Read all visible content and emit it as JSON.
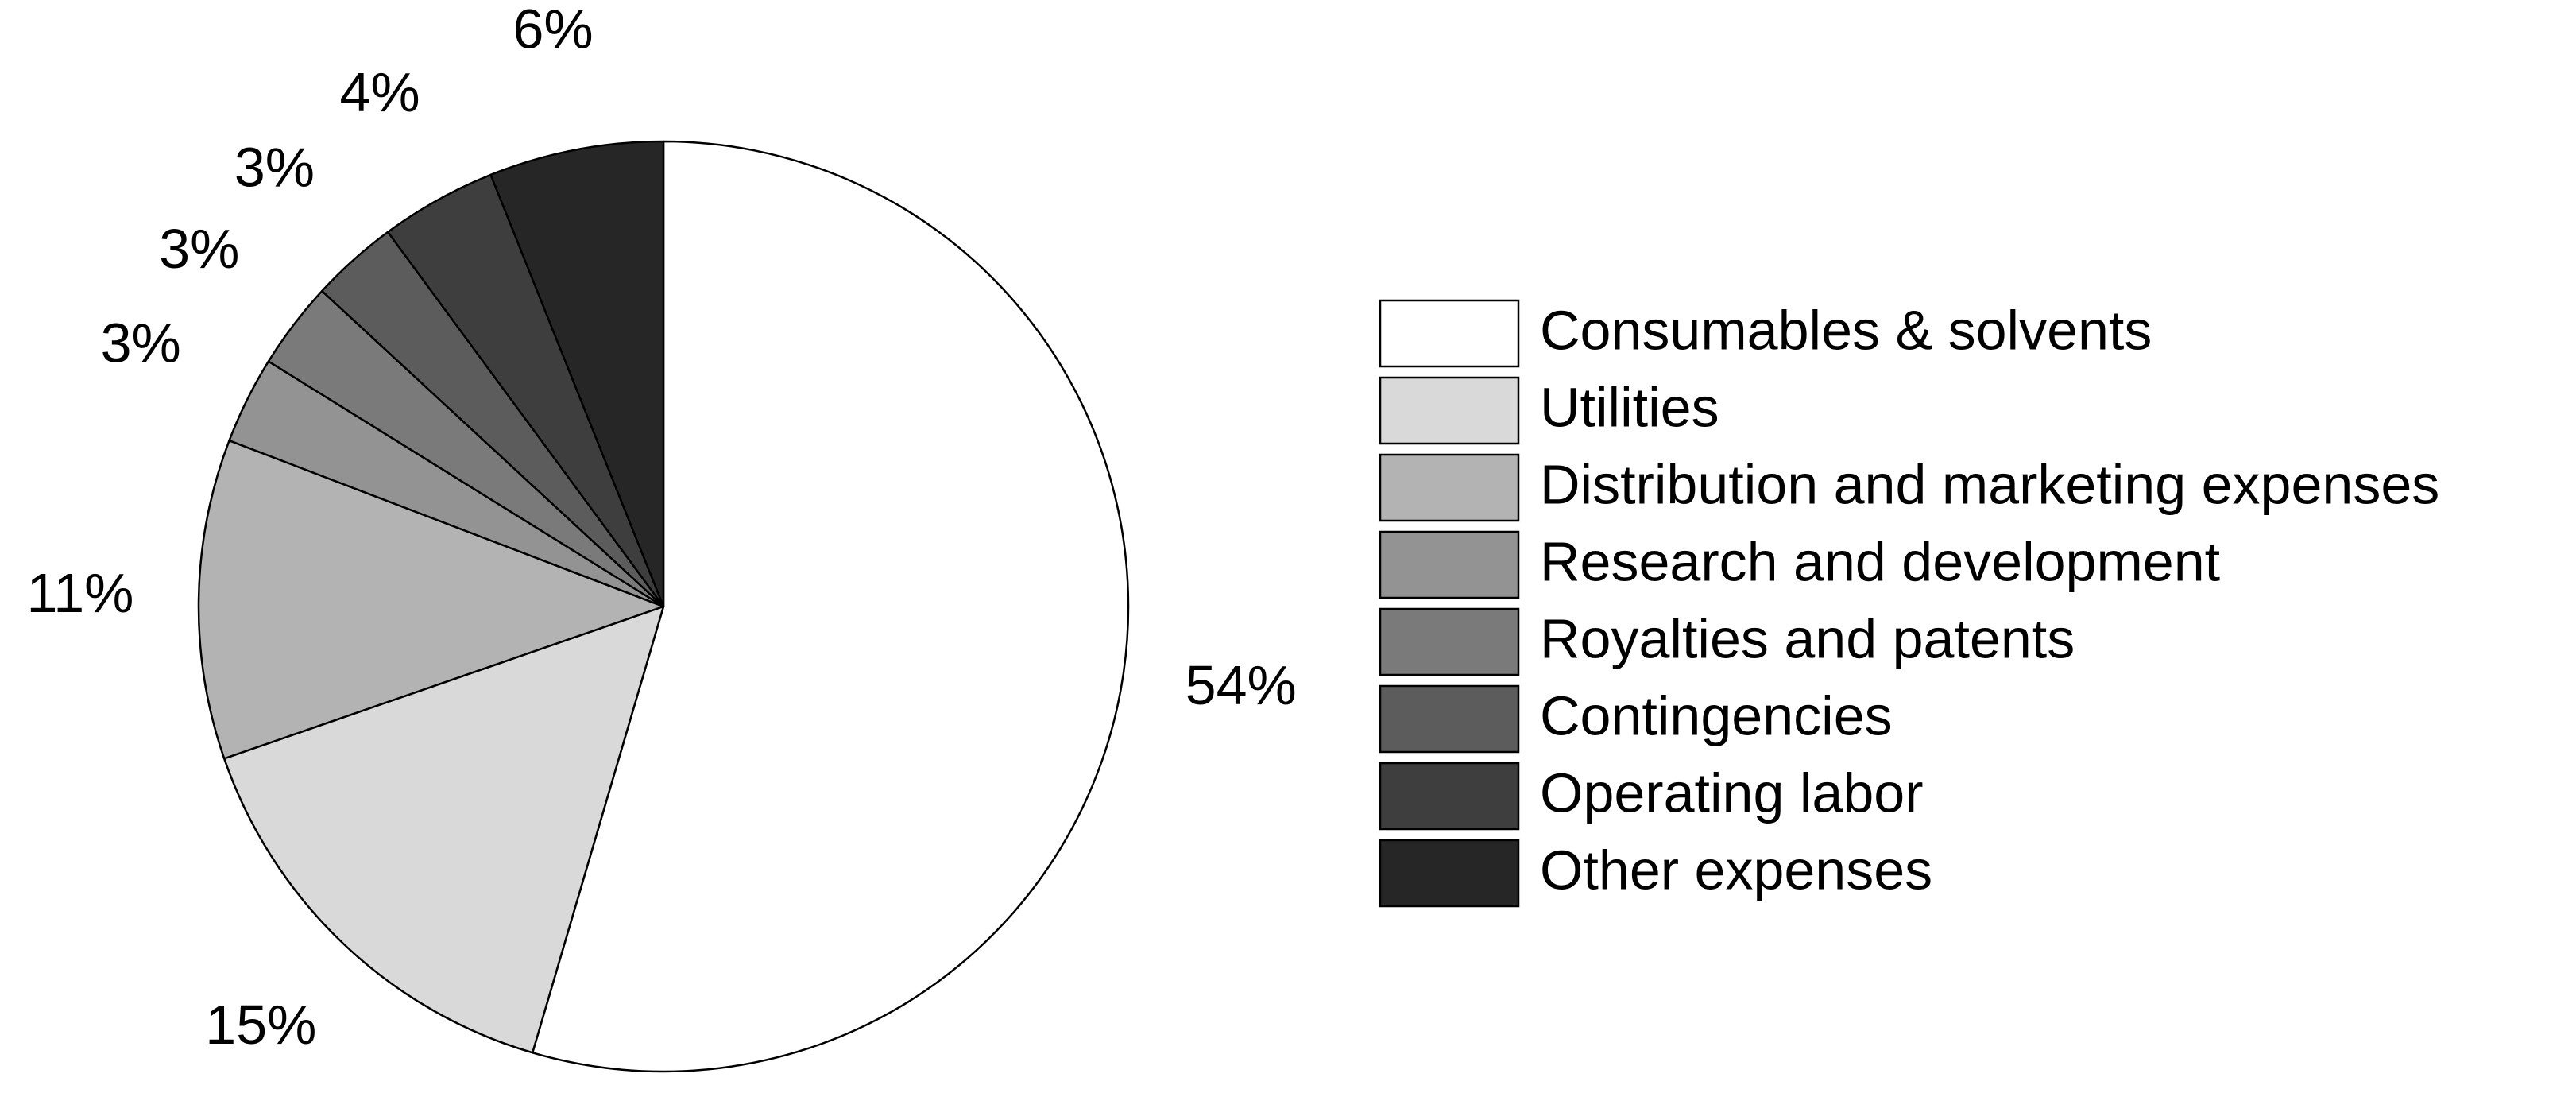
{
  "chart_data": {
    "type": "pie",
    "categories": [
      "Consumables & solvents",
      "Utilities",
      "Distribution and marketing expenses",
      "Research and development",
      "Royalties and patents",
      "Contingencies",
      "Operating labor",
      "Other expenses"
    ],
    "values": [
      54,
      15,
      11,
      3,
      3,
      3,
      4,
      6
    ],
    "value_labels": [
      "54%",
      "15%",
      "11%",
      "3%",
      "3%",
      "3%",
      "4%",
      "6%"
    ],
    "colors": [
      "#ffffff",
      "#d9d9d9",
      "#b3b3b3",
      "#939393",
      "#7a7a7a",
      "#5c5c5c",
      "#3e3e3e",
      "#262626"
    ],
    "legend": "right"
  }
}
